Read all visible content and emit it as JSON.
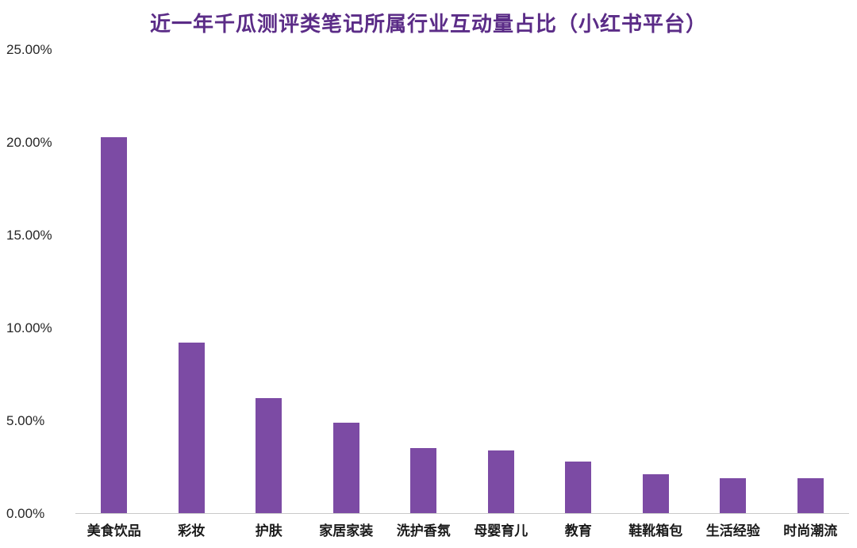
{
  "chart_data": {
    "type": "bar",
    "title": "近一年千瓜测评类笔记所属行业互动量占比（小红书平台）",
    "categories": [
      "美食饮品",
      "彩妆",
      "护肤",
      "家居家装",
      "洗护香氛",
      "母婴育儿",
      "教育",
      "鞋靴箱包",
      "生活经验",
      "时尚潮流"
    ],
    "values": [
      20.3,
      9.2,
      6.2,
      4.9,
      3.5,
      3.4,
      2.8,
      2.1,
      1.9,
      1.9
    ],
    "unit": "%",
    "xlabel": "",
    "ylabel": "",
    "ylim": [
      0,
      25
    ],
    "ytick_labels": [
      "0.00%",
      "5.00%",
      "10.00%",
      "15.00%",
      "20.00%",
      "25.00%"
    ],
    "ytick_values": [
      0,
      5,
      10,
      15,
      20,
      25
    ],
    "grid": false,
    "legend_position": "none",
    "colors": {
      "bar": "#7C4BA4",
      "title": "#5B2C87",
      "axis_line": "#c9c9c9",
      "tick_text": "#262626",
      "category_text": "#1a1a1a"
    }
  }
}
